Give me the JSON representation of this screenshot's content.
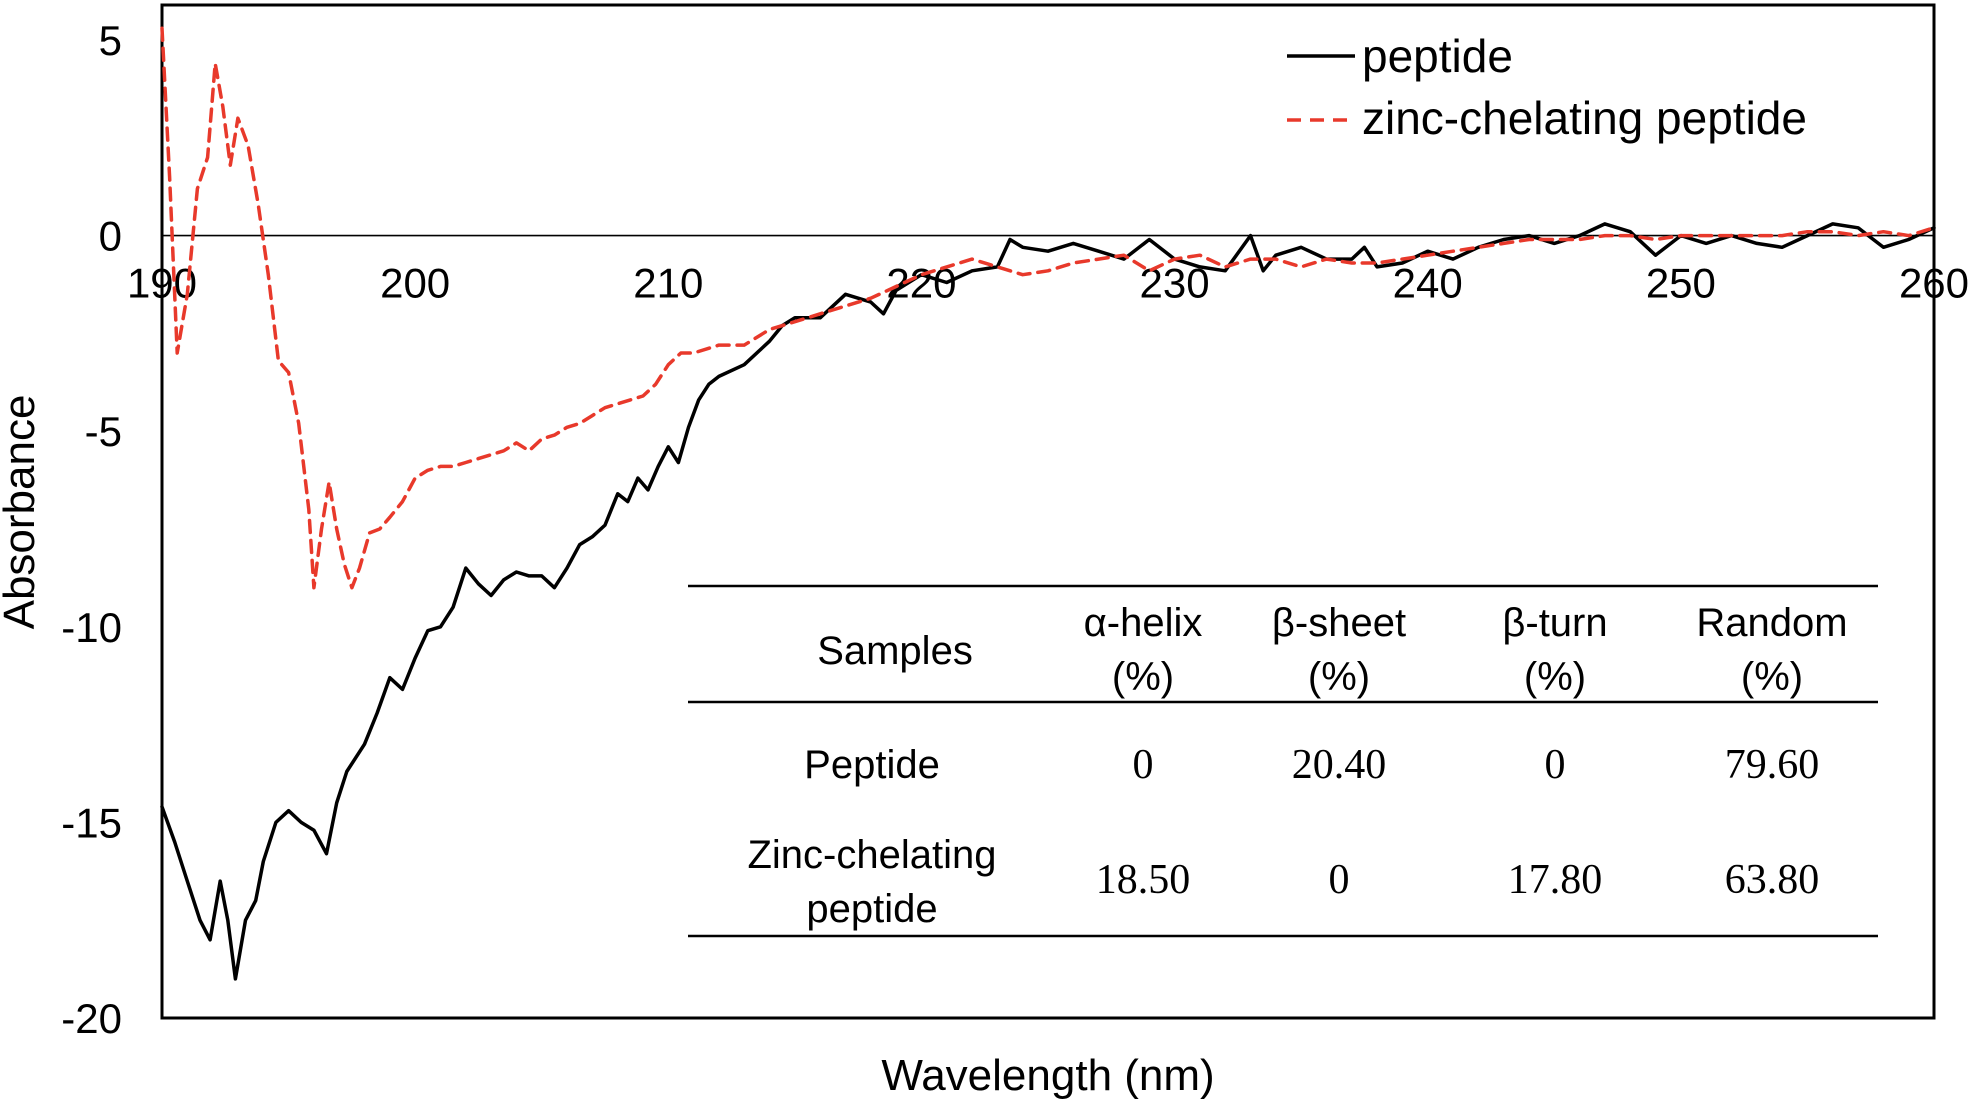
{
  "chart_data": {
    "type": "line",
    "title": "",
    "xlabel": "Wavelength (nm)",
    "ylabel": "Absorbance",
    "xlim": [
      190,
      260
    ],
    "ylim": [
      -20,
      5
    ],
    "x_ticks": [
      190,
      200,
      210,
      220,
      230,
      240,
      250,
      260
    ],
    "y_ticks": [
      5,
      0,
      -5,
      -10,
      -15,
      -20
    ],
    "zero_line": true,
    "grid": false,
    "legend_position": "top-right",
    "series": [
      {
        "name": "peptide",
        "color": "#000000",
        "dash": "solid",
        "points": [
          [
            190.0,
            -14.6
          ],
          [
            190.5,
            -15.5
          ],
          [
            191.0,
            -16.5
          ],
          [
            191.5,
            -17.5
          ],
          [
            191.9,
            -18.0
          ],
          [
            192.3,
            -16.5
          ],
          [
            192.6,
            -17.5
          ],
          [
            192.9,
            -19.0
          ],
          [
            193.3,
            -17.5
          ],
          [
            193.7,
            -17.0
          ],
          [
            194.0,
            -16.0
          ],
          [
            194.5,
            -15.0
          ],
          [
            195.0,
            -14.7
          ],
          [
            195.5,
            -15.0
          ],
          [
            196.0,
            -15.2
          ],
          [
            196.5,
            -15.8
          ],
          [
            196.9,
            -14.5
          ],
          [
            197.3,
            -13.7
          ],
          [
            198.0,
            -13.0
          ],
          [
            198.5,
            -12.2
          ],
          [
            199.0,
            -11.3
          ],
          [
            199.5,
            -11.6
          ],
          [
            200.0,
            -10.8
          ],
          [
            200.5,
            -10.1
          ],
          [
            201.0,
            -10.0
          ],
          [
            201.5,
            -9.5
          ],
          [
            202.0,
            -8.5
          ],
          [
            202.5,
            -8.9
          ],
          [
            203.0,
            -9.2
          ],
          [
            203.5,
            -8.8
          ],
          [
            204.0,
            -8.6
          ],
          [
            204.5,
            -8.7
          ],
          [
            205.0,
            -8.7
          ],
          [
            205.5,
            -9.0
          ],
          [
            206.0,
            -8.5
          ],
          [
            206.5,
            -7.9
          ],
          [
            207.0,
            -7.7
          ],
          [
            207.5,
            -7.4
          ],
          [
            208.0,
            -6.6
          ],
          [
            208.4,
            -6.8
          ],
          [
            208.8,
            -6.2
          ],
          [
            209.2,
            -6.5
          ],
          [
            209.6,
            -5.9
          ],
          [
            210.0,
            -5.4
          ],
          [
            210.4,
            -5.8
          ],
          [
            210.8,
            -4.9
          ],
          [
            211.2,
            -4.2
          ],
          [
            211.6,
            -3.8
          ],
          [
            212.0,
            -3.6
          ],
          [
            213.0,
            -3.3
          ],
          [
            214.0,
            -2.7
          ],
          [
            214.5,
            -2.3
          ],
          [
            215.0,
            -2.1
          ],
          [
            216.0,
            -2.1
          ],
          [
            217.0,
            -1.5
          ],
          [
            218.0,
            -1.7
          ],
          [
            218.5,
            -2.0
          ],
          [
            219.0,
            -1.4
          ],
          [
            220.0,
            -1.0
          ],
          [
            221.0,
            -1.2
          ],
          [
            222.0,
            -0.9
          ],
          [
            223.0,
            -0.8
          ],
          [
            223.5,
            -0.1
          ],
          [
            224.0,
            -0.3
          ],
          [
            225.0,
            -0.4
          ],
          [
            226.0,
            -0.2
          ],
          [
            227.0,
            -0.4
          ],
          [
            228.0,
            -0.6
          ],
          [
            229.0,
            -0.1
          ],
          [
            230.0,
            -0.6
          ],
          [
            231.0,
            -0.8
          ],
          [
            232.0,
            -0.9
          ],
          [
            233.0,
            0.0
          ],
          [
            233.5,
            -0.9
          ],
          [
            234.0,
            -0.5
          ],
          [
            235.0,
            -0.3
          ],
          [
            236.0,
            -0.6
          ],
          [
            237.0,
            -0.6
          ],
          [
            237.5,
            -0.3
          ],
          [
            238.0,
            -0.8
          ],
          [
            239.0,
            -0.7
          ],
          [
            240.0,
            -0.4
          ],
          [
            241.0,
            -0.6
          ],
          [
            242.0,
            -0.3
          ],
          [
            243.0,
            -0.1
          ],
          [
            244.0,
            0.0
          ],
          [
            245.0,
            -0.2
          ],
          [
            246.0,
            0.0
          ],
          [
            247.0,
            0.3
          ],
          [
            248.0,
            0.1
          ],
          [
            249.0,
            -0.5
          ],
          [
            250.0,
            0.0
          ],
          [
            251.0,
            -0.2
          ],
          [
            252.0,
            0.0
          ],
          [
            253.0,
            -0.2
          ],
          [
            254.0,
            -0.3
          ],
          [
            255.0,
            0.0
          ],
          [
            256.0,
            0.3
          ],
          [
            257.0,
            0.2
          ],
          [
            258.0,
            -0.3
          ],
          [
            259.0,
            -0.1
          ],
          [
            260.0,
            0.2
          ]
        ]
      },
      {
        "name": "zinc-chelating peptide",
        "color": "#e8392b",
        "dash": "dashed",
        "points": [
          [
            190.0,
            5.3
          ],
          [
            190.3,
            1.5
          ],
          [
            190.6,
            -3.0
          ],
          [
            191.0,
            -1.5
          ],
          [
            191.4,
            1.2
          ],
          [
            191.8,
            2.0
          ],
          [
            192.1,
            4.4
          ],
          [
            192.4,
            3.3
          ],
          [
            192.7,
            1.8
          ],
          [
            193.0,
            3.0
          ],
          [
            193.4,
            2.3
          ],
          [
            193.8,
            0.8
          ],
          [
            194.2,
            -1.0
          ],
          [
            194.6,
            -3.2
          ],
          [
            195.0,
            -3.5
          ],
          [
            195.4,
            -4.8
          ],
          [
            195.8,
            -7.0
          ],
          [
            196.0,
            -9.0
          ],
          [
            196.3,
            -7.5
          ],
          [
            196.6,
            -6.3
          ],
          [
            196.9,
            -7.5
          ],
          [
            197.2,
            -8.4
          ],
          [
            197.5,
            -9.0
          ],
          [
            197.8,
            -8.5
          ],
          [
            198.2,
            -7.6
          ],
          [
            198.6,
            -7.5
          ],
          [
            199.0,
            -7.2
          ],
          [
            199.5,
            -6.8
          ],
          [
            200.0,
            -6.2
          ],
          [
            200.5,
            -6.0
          ],
          [
            201.0,
            -5.9
          ],
          [
            201.5,
            -5.9
          ],
          [
            202.0,
            -5.8
          ],
          [
            202.5,
            -5.7
          ],
          [
            203.0,
            -5.6
          ],
          [
            203.5,
            -5.5
          ],
          [
            204.0,
            -5.3
          ],
          [
            204.5,
            -5.5
          ],
          [
            205.0,
            -5.2
          ],
          [
            205.5,
            -5.1
          ],
          [
            206.0,
            -4.9
          ],
          [
            206.5,
            -4.8
          ],
          [
            207.0,
            -4.6
          ],
          [
            207.5,
            -4.4
          ],
          [
            208.0,
            -4.3
          ],
          [
            208.5,
            -4.2
          ],
          [
            209.0,
            -4.1
          ],
          [
            209.5,
            -3.8
          ],
          [
            210.0,
            -3.3
          ],
          [
            210.5,
            -3.0
          ],
          [
            211.0,
            -3.0
          ],
          [
            212.0,
            -2.8
          ],
          [
            213.0,
            -2.8
          ],
          [
            214.0,
            -2.4
          ],
          [
            215.0,
            -2.2
          ],
          [
            216.0,
            -2.0
          ],
          [
            217.0,
            -1.8
          ],
          [
            218.0,
            -1.6
          ],
          [
            219.0,
            -1.3
          ],
          [
            220.0,
            -1.0
          ],
          [
            221.0,
            -0.8
          ],
          [
            222.0,
            -0.6
          ],
          [
            223.0,
            -0.8
          ],
          [
            224.0,
            -1.0
          ],
          [
            225.0,
            -0.9
          ],
          [
            226.0,
            -0.7
          ],
          [
            227.0,
            -0.6
          ],
          [
            228.0,
            -0.5
          ],
          [
            229.0,
            -0.9
          ],
          [
            230.0,
            -0.6
          ],
          [
            231.0,
            -0.5
          ],
          [
            232.0,
            -0.8
          ],
          [
            233.0,
            -0.6
          ],
          [
            234.0,
            -0.6
          ],
          [
            235.0,
            -0.8
          ],
          [
            236.0,
            -0.6
          ],
          [
            237.0,
            -0.7
          ],
          [
            238.0,
            -0.7
          ],
          [
            239.0,
            -0.6
          ],
          [
            240.0,
            -0.5
          ],
          [
            241.0,
            -0.4
          ],
          [
            242.0,
            -0.3
          ],
          [
            243.0,
            -0.2
          ],
          [
            244.0,
            -0.1
          ],
          [
            245.0,
            -0.1
          ],
          [
            246.0,
            -0.1
          ],
          [
            247.0,
            0.0
          ],
          [
            248.0,
            0.0
          ],
          [
            249.0,
            -0.1
          ],
          [
            250.0,
            0.0
          ],
          [
            251.0,
            0.0
          ],
          [
            252.0,
            0.0
          ],
          [
            253.0,
            0.0
          ],
          [
            254.0,
            0.0
          ],
          [
            255.0,
            0.1
          ],
          [
            256.0,
            0.1
          ],
          [
            257.0,
            0.0
          ],
          [
            258.0,
            0.1
          ],
          [
            259.0,
            0.0
          ],
          [
            260.0,
            0.2
          ]
        ]
      }
    ],
    "table": {
      "headers": [
        [
          "Samples"
        ],
        [
          "α-helix",
          "(%)"
        ],
        [
          "β-sheet",
          "(%)"
        ],
        [
          "β-turn",
          "(%)"
        ],
        [
          "Random",
          "(%)"
        ]
      ],
      "rows": [
        {
          "sample": [
            "Peptide"
          ],
          "values": [
            "0",
            "20.40",
            "0",
            "79.60"
          ]
        },
        {
          "sample": [
            "Zinc-chelating",
            "peptide"
          ],
          "values": [
            "18.50",
            "0",
            "17.80",
            "63.80"
          ]
        }
      ]
    }
  }
}
